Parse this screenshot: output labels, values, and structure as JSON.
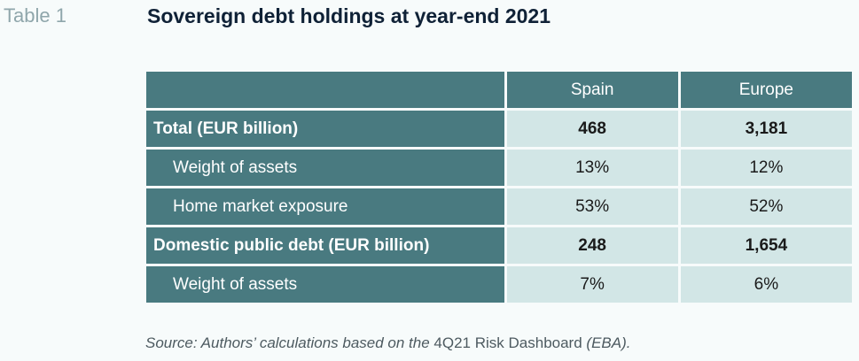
{
  "table_label": "Table 1",
  "title": "Sovereign debt holdings at year-end 2021",
  "columns": [
    "Spain",
    "Europe"
  ],
  "rows": [
    {
      "label": "Total (EUR billion)",
      "spain": "468",
      "europe": "3,181"
    },
    {
      "label": "Weight of assets",
      "spain": "13%",
      "europe": "12%"
    },
    {
      "label": "Home market exposure",
      "spain": "53%",
      "europe": "52%"
    },
    {
      "label": "Domestic public debt (EUR billion)",
      "spain": "248",
      "europe": "1,654"
    },
    {
      "label": "Weight of assets",
      "spain": "7%",
      "europe": "6%"
    }
  ],
  "source": {
    "part1": "Source: Authors’ calculations based on the ",
    "part2": "4Q21 Risk Dashboard",
    "part3": " (EBA)."
  }
}
